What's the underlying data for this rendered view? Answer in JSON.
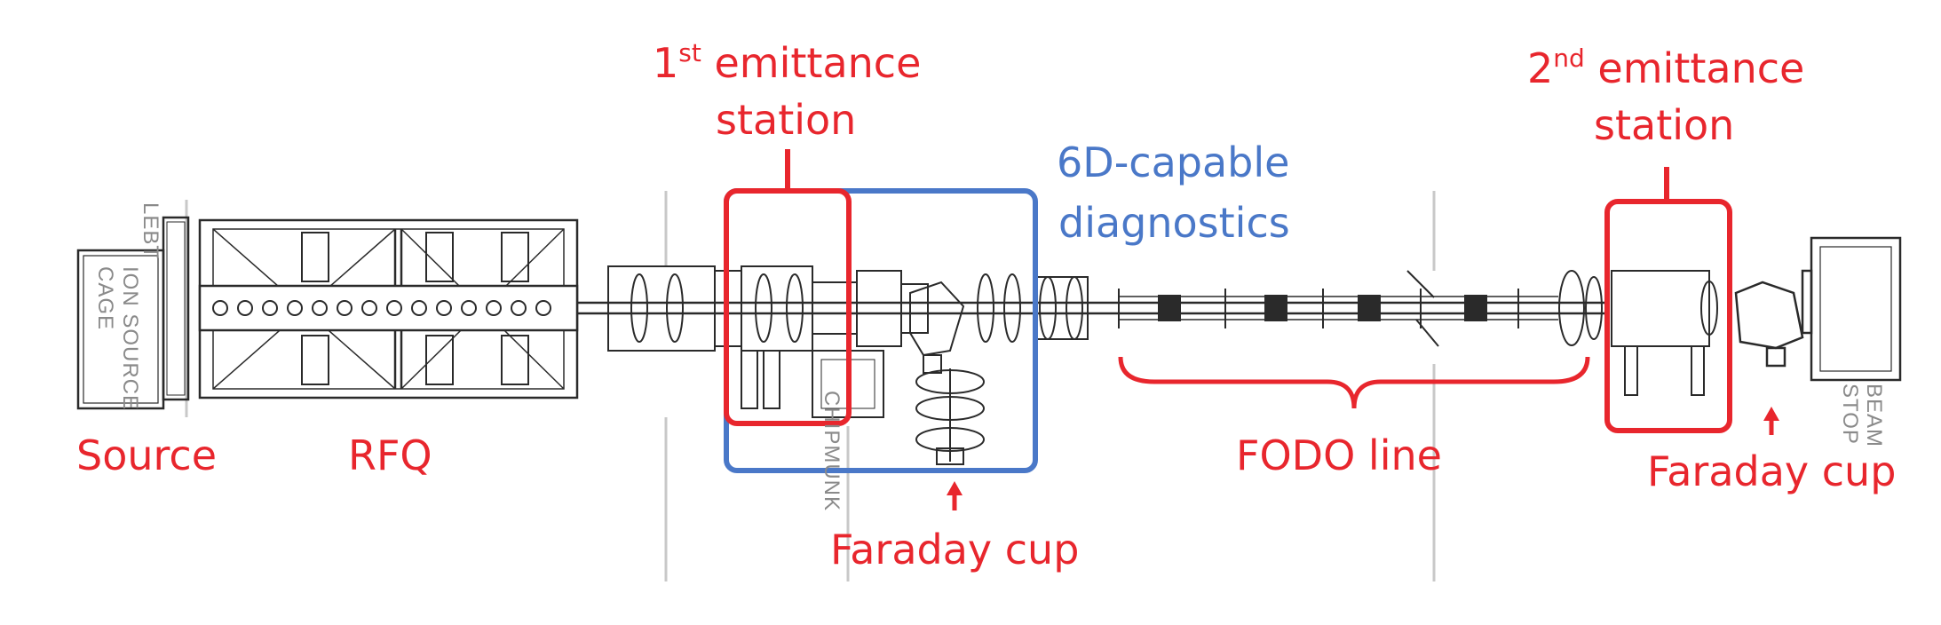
{
  "labels": {
    "emittance_1_pre": "1",
    "emittance_1_sup": "st",
    "emittance_1_post": " emittance",
    "emittance_1_line2": "station",
    "emittance_2_pre": "2",
    "emittance_2_sup": "nd",
    "emittance_2_post": " emittance",
    "emittance_2_line2": "station",
    "diag_line1": "6D-capable",
    "diag_line2": "diagnostics",
    "source": "Source",
    "rfq": "RFQ",
    "fodo": "FODO line",
    "faraday_1": "Faraday cup",
    "faraday_2": "Faraday cup"
  },
  "drawing_text": {
    "lebt": "LEBT",
    "ion_source_1": "ION SOURCE",
    "ion_source_2": "CAGE",
    "chipmunk": "CHIPMUNK",
    "beam_stop_1": "BEAM",
    "beam_stop_2": "STOP"
  },
  "colors": {
    "annotation_red": "#e8262d",
    "annotation_blue": "#4a78c8",
    "drawing_line": "#2a2a2a",
    "grid_line": "#c8c8c8"
  }
}
